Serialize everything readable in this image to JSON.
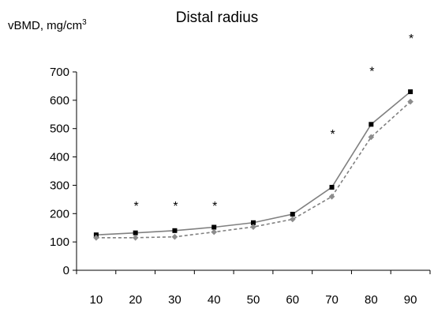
{
  "chart_data": {
    "type": "line",
    "title": "Distal radius",
    "ylabel": "vBMD, mg/cm",
    "ylabel_superscript": "3",
    "xlabel": "",
    "x": [
      10,
      20,
      30,
      40,
      50,
      60,
      70,
      80,
      90
    ],
    "ylim": [
      0,
      700
    ],
    "yticks": [
      0,
      100,
      200,
      300,
      400,
      500,
      600,
      700
    ],
    "grid": false,
    "series": [
      {
        "marker": "square",
        "line_style": "solid",
        "color": "#808080",
        "marker_color": "#000000",
        "values": [
          125,
          132,
          140,
          152,
          168,
          198,
          293,
          515,
          630
        ]
      },
      {
        "marker": "diamond",
        "line_style": "dashed",
        "color": "#808080",
        "marker_color": "#8c8c8c",
        "values": [
          115,
          115,
          118,
          135,
          153,
          180,
          260,
          470,
          595
        ]
      }
    ],
    "annotations": [
      {
        "x": 20,
        "text": "*"
      },
      {
        "x": 30,
        "text": "*"
      },
      {
        "x": 40,
        "text": "*"
      },
      {
        "x": 70,
        "text": "*"
      },
      {
        "x": 80,
        "text": "*"
      },
      {
        "x": 90,
        "text": "*"
      }
    ]
  }
}
